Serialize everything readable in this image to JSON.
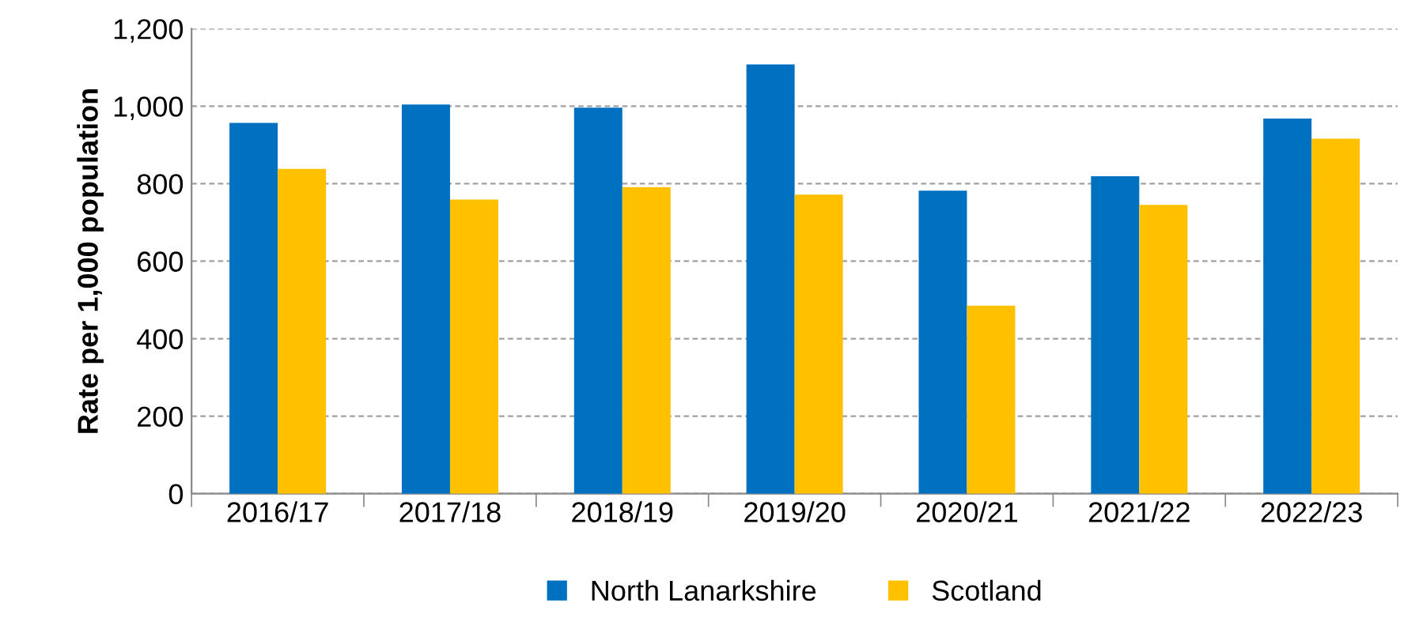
{
  "chart_data": {
    "type": "bar",
    "ylabel": "Rate per 1,000 population",
    "categories": [
      "2016/17",
      "2017/18",
      "2018/19",
      "2019/20",
      "2020/21",
      "2021/22",
      "2022/23"
    ],
    "series": [
      {
        "name": "North Lanarkshire",
        "color": "#0070c0",
        "values": [
          957,
          1004,
          996,
          1108,
          782,
          819,
          968
        ]
      },
      {
        "name": "Scotland",
        "color": "#ffc000",
        "values": [
          838,
          759,
          791,
          772,
          485,
          745,
          916
        ]
      }
    ],
    "ylim": [
      0,
      1200
    ],
    "yticks": [
      {
        "value": 0,
        "label": "0"
      },
      {
        "value": 200,
        "label": "200"
      },
      {
        "value": 400,
        "label": "400"
      },
      {
        "value": 600,
        "label": "600"
      },
      {
        "value": 800,
        "label": "800"
      },
      {
        "value": 1000,
        "label": "1,000"
      },
      {
        "value": 1200,
        "label": "1,200"
      }
    ],
    "grid": "y",
    "legend": "bottom"
  }
}
